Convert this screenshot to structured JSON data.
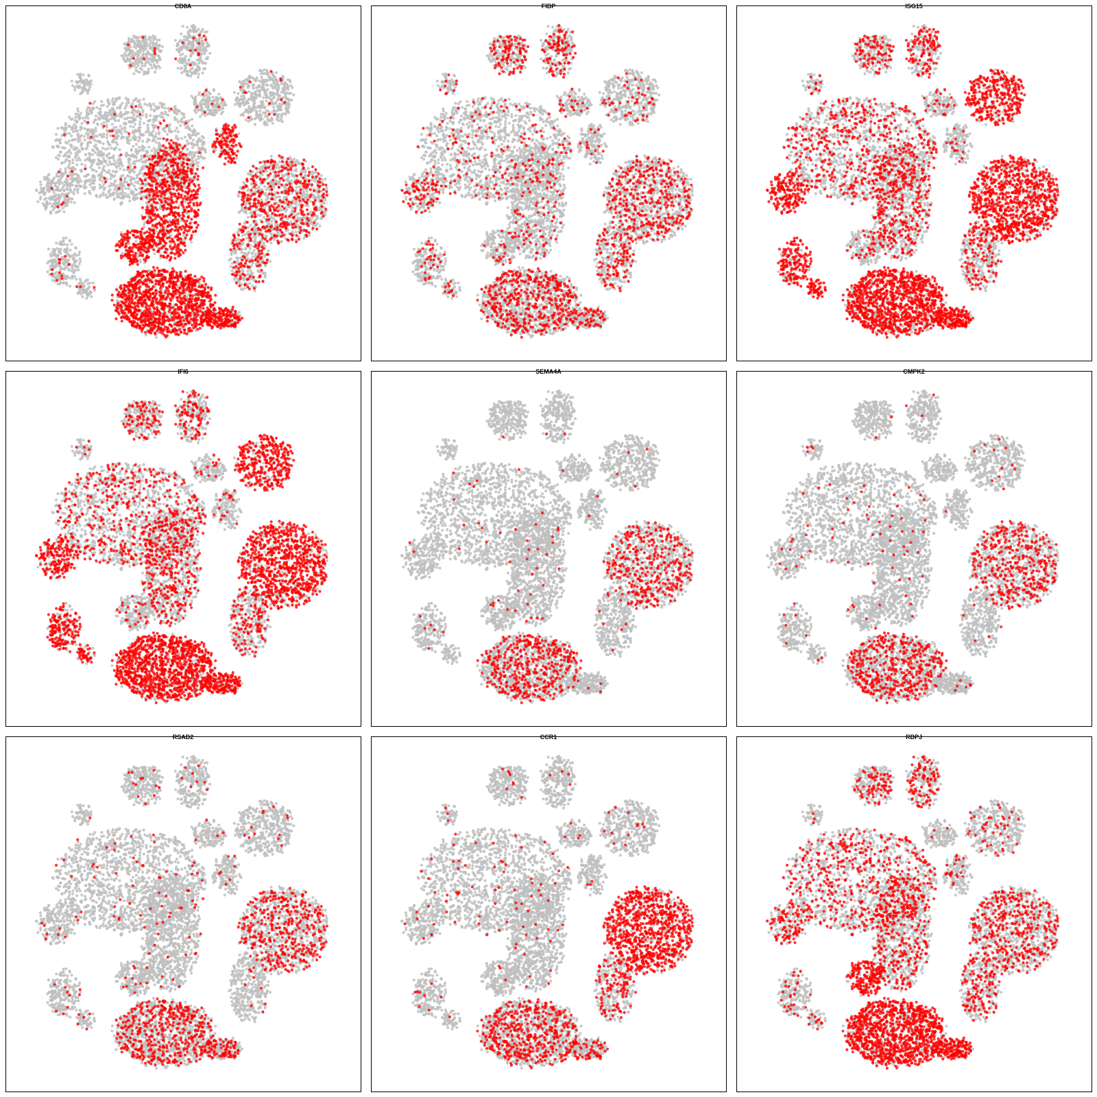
{
  "chart_data": [
    {
      "type": "scatter",
      "title": "CD8A",
      "xlabel": "",
      "ylabel": "",
      "grid": false,
      "legend": "none",
      "colors": {
        "low": "#bebebe",
        "high": "#ff0000"
      },
      "high_clusters": [
        "center-vertical",
        "center-left-lobe",
        "bottom-big",
        "bottom-right-tail",
        "upper-right-blob"
      ],
      "medium_clusters": [
        "right-big",
        "right-lower-arm"
      ],
      "background_rate": 0.03
    },
    {
      "type": "scatter",
      "title": "FIBP",
      "xlabel": "",
      "ylabel": "",
      "grid": false,
      "legend": "none",
      "colors": {
        "low": "#bebebe",
        "high": "#ff0000"
      },
      "high_clusters": [],
      "medium_clusters": [
        "top-arc-right",
        "top-arc-left",
        "right-big",
        "right-lower-arm",
        "bottom-big",
        "bottom-right-tail",
        "left-edge"
      ],
      "background_rate": 0.1
    },
    {
      "type": "scatter",
      "title": "ISG15",
      "xlabel": "",
      "ylabel": "",
      "grid": false,
      "legend": "none",
      "colors": {
        "low": "#bebebe",
        "high": "#ff0000"
      },
      "high_clusters": [
        "right-big",
        "bottom-big",
        "bottom-right-tail",
        "left-edge",
        "left-small-arm",
        "left-bottom-spot",
        "top-right-patch"
      ],
      "medium_clusters": [
        "center-vertical",
        "right-lower-arm",
        "top-arc-right",
        "top-arc-left",
        "left-lobe"
      ],
      "background_rate": 0.12
    },
    {
      "type": "scatter",
      "title": "IFI6",
      "xlabel": "",
      "ylabel": "",
      "grid": false,
      "legend": "none",
      "colors": {
        "low": "#bebebe",
        "high": "#ff0000"
      },
      "high_clusters": [
        "right-big",
        "bottom-big",
        "bottom-right-tail",
        "left-edge",
        "left-small-arm",
        "left-bottom-spot",
        "top-right-patch"
      ],
      "medium_clusters": [
        "center-vertical",
        "right-lower-arm",
        "top-arc-right",
        "top-arc-left",
        "left-lobe"
      ],
      "background_rate": 0.1
    },
    {
      "type": "scatter",
      "title": "SEMA4A",
      "xlabel": "",
      "ylabel": "",
      "grid": false,
      "legend": "none",
      "colors": {
        "low": "#bebebe",
        "high": "#ff0000"
      },
      "high_clusters": [],
      "medium_clusters": [
        "right-big",
        "bottom-big"
      ],
      "background_rate": 0.015
    },
    {
      "type": "scatter",
      "title": "CMPK2",
      "xlabel": "",
      "ylabel": "",
      "grid": false,
      "legend": "none",
      "colors": {
        "low": "#bebebe",
        "high": "#ff0000"
      },
      "high_clusters": [],
      "medium_clusters": [
        "right-big",
        "bottom-big"
      ],
      "background_rate": 0.02
    },
    {
      "type": "scatter",
      "title": "RSAD2",
      "xlabel": "",
      "ylabel": "",
      "grid": false,
      "legend": "none",
      "colors": {
        "low": "#bebebe",
        "high": "#ff0000"
      },
      "high_clusters": [],
      "medium_clusters": [
        "right-big",
        "bottom-big",
        "bottom-right-tail"
      ],
      "background_rate": 0.03
    },
    {
      "type": "scatter",
      "title": "CCR1",
      "xlabel": "",
      "ylabel": "",
      "grid": false,
      "legend": "none",
      "colors": {
        "low": "#bebebe",
        "high": "#ff0000"
      },
      "high_clusters": [
        "right-big"
      ],
      "medium_clusters": [
        "bottom-big",
        "bottom-right-tail",
        "right-lower-arm"
      ],
      "background_rate": 0.03
    },
    {
      "type": "scatter",
      "title": "RBPJ",
      "xlabel": "",
      "ylabel": "",
      "grid": false,
      "legend": "none",
      "colors": {
        "low": "#bebebe",
        "high": "#ff0000"
      },
      "high_clusters": [
        "bottom-big",
        "bottom-right-tail",
        "center-left-lobe"
      ],
      "medium_clusters": [
        "right-big",
        "center-vertical",
        "left-lobe",
        "left-edge",
        "top-arc-right",
        "top-arc-left",
        "right-lower-arm"
      ],
      "background_rate": 0.12
    }
  ]
}
